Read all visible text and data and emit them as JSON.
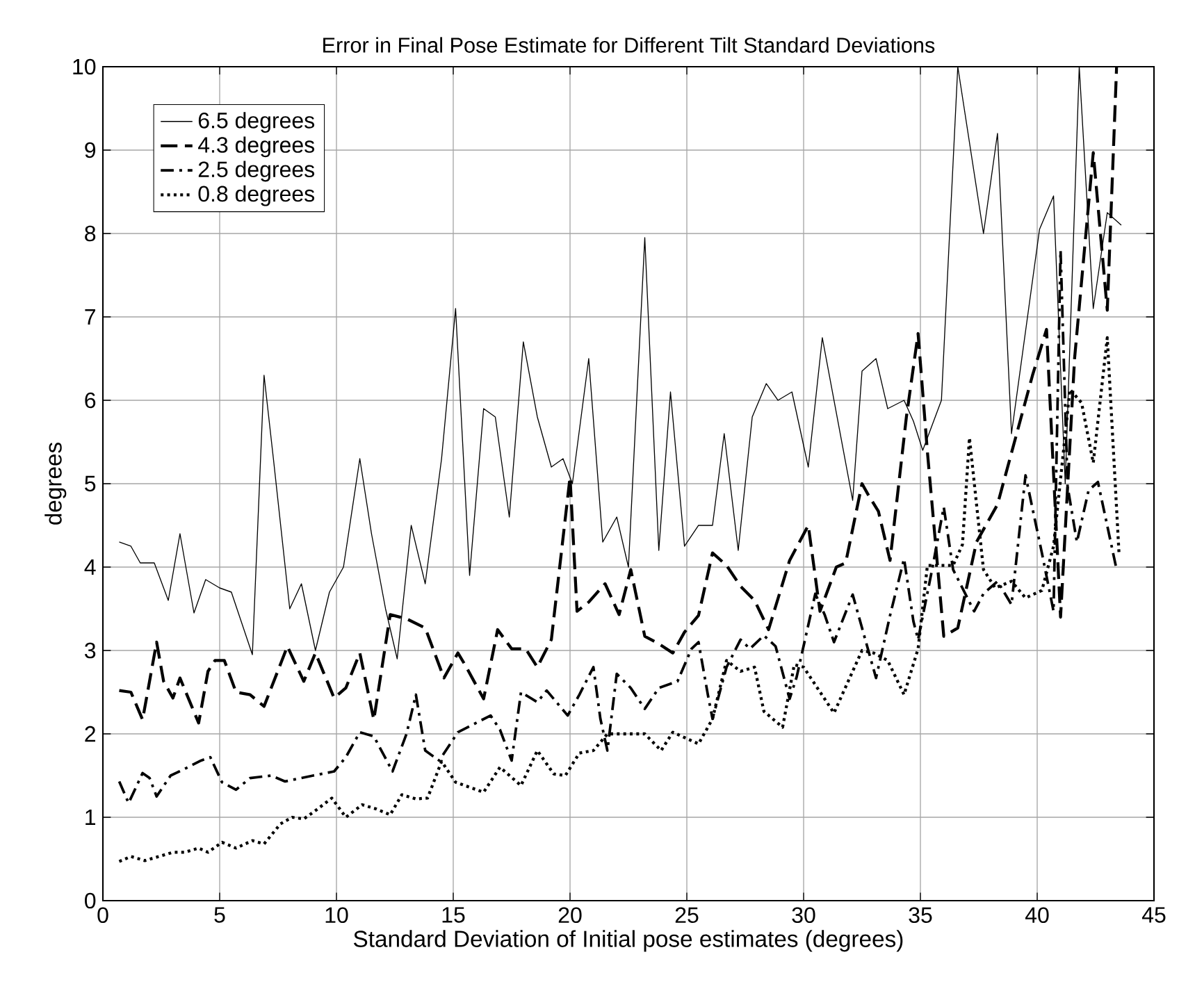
{
  "chart_data": {
    "type": "line",
    "title": "Error in Final Pose Estimate for Different Tilt Standard Deviations",
    "xlabel": "Standard Deviation of Initial pose estimates (degrees)",
    "ylabel": "degrees",
    "xlim": [
      0,
      45
    ],
    "ylim": [
      0,
      10
    ],
    "xticks": [
      0,
      5,
      10,
      15,
      20,
      25,
      30,
      35,
      40,
      45
    ],
    "yticks": [
      0,
      1,
      2,
      3,
      4,
      5,
      6,
      7,
      8,
      9,
      10
    ],
    "grid": true,
    "legend": "top left",
    "marker": "none",
    "series": [
      {
        "name": "6.5 degrees",
        "color": "#000000",
        "line_style": "solid",
        "x": [
          0.7,
          1.2,
          1.6,
          2.2,
          2.8,
          3.3,
          3.9,
          4.4,
          5.0,
          5.5,
          6.4,
          6.9,
          7.3,
          8.0,
          8.5,
          9.1,
          9.7,
          10.3,
          11.0,
          11.5,
          12.1,
          12.6,
          13.2,
          13.8,
          14.5,
          15.1,
          15.7,
          16.3,
          16.8,
          17.4,
          18.0,
          18.6,
          19.2,
          19.7,
          20.1,
          20.8,
          21.4,
          22.0,
          22.5,
          23.2,
          23.8,
          24.3,
          24.9,
          25.5,
          26.1,
          26.6,
          27.2,
          27.8,
          28.4,
          28.9,
          29.5,
          30.2,
          30.8,
          32.1,
          32.5,
          33.1,
          33.6,
          34.3,
          34.7,
          35.1,
          35.9,
          36.6,
          37.7,
          38.3,
          38.9,
          40.1,
          40.7,
          41.2,
          41.8,
          42.4,
          43.0,
          43.6
        ],
        "values": [
          4.3,
          4.25,
          4.05,
          4.05,
          3.6,
          4.4,
          3.45,
          3.85,
          3.75,
          3.7,
          2.95,
          6.3,
          5.3,
          3.5,
          3.8,
          3.0,
          3.7,
          4.0,
          5.3,
          4.4,
          3.5,
          2.9,
          4.5,
          3.8,
          5.3,
          7.1,
          3.9,
          5.9,
          5.8,
          4.6,
          6.7,
          5.8,
          5.2,
          5.3,
          5.0,
          6.5,
          4.3,
          4.6,
          4.0,
          7.95,
          4.2,
          6.1,
          4.25,
          4.5,
          4.5,
          5.6,
          4.2,
          5.8,
          6.2,
          6.0,
          6.1,
          5.2,
          6.75,
          4.8,
          6.35,
          6.5,
          5.9,
          6.0,
          5.75,
          5.4,
          6.0,
          10,
          8.0,
          9.2,
          5.6,
          8.05,
          8.45,
          5.0,
          10,
          7.1,
          8.25,
          8.1
        ]
      },
      {
        "name": "4.3 degrees",
        "color": "#000000",
        "line_style": "dashed",
        "x": [
          0.7,
          1.2,
          1.7,
          2.3,
          2.6,
          3.0,
          3.3,
          4.1,
          4.5,
          4.8,
          5.2,
          5.7,
          6.3,
          6.9,
          7.9,
          8.6,
          9.1,
          9.9,
          10.4,
          11.0,
          11.6,
          12.3,
          13.0,
          13.8,
          14.6,
          15.2,
          15.5,
          16.3,
          16.9,
          17.5,
          18.1,
          18.6,
          19.2,
          20.0,
          20.3,
          20.8,
          21.5,
          22.1,
          22.6,
          23.2,
          23.8,
          24.4,
          24.9,
          25.5,
          26.1,
          26.7,
          27.3,
          27.9,
          28.5,
          29.4,
          30.2,
          30.7,
          31.4,
          31.8,
          32.5,
          32.8,
          33.2,
          33.7,
          34.4,
          34.9,
          35.3,
          36.0,
          36.6,
          37.4,
          38.3,
          39.8,
          40.4,
          41.0,
          41.6,
          42.4,
          43.0,
          43.4
        ],
        "values": [
          2.52,
          2.5,
          2.17,
          3.1,
          2.63,
          2.43,
          2.67,
          2.13,
          2.75,
          2.88,
          2.88,
          2.5,
          2.47,
          2.33,
          3.05,
          2.63,
          2.97,
          2.43,
          2.55,
          2.97,
          2.17,
          3.43,
          3.38,
          3.27,
          2.67,
          2.97,
          2.83,
          2.42,
          3.25,
          3.02,
          3.02,
          2.8,
          3.13,
          5.08,
          3.47,
          3.58,
          3.8,
          3.43,
          3.97,
          3.17,
          3.08,
          2.97,
          3.22,
          3.42,
          4.17,
          4.02,
          3.77,
          3.6,
          3.25,
          4.08,
          4.5,
          3.47,
          4.0,
          4.05,
          5.0,
          4.85,
          4.67,
          4.08,
          5.8,
          6.8,
          5.38,
          3.17,
          3.27,
          4.3,
          4.75,
          6.3,
          6.85,
          3.4,
          6.5,
          8.97,
          7.08,
          10
        ]
      },
      {
        "name": "2.5 degrees",
        "color": "#000000",
        "line_style": "dashdot",
        "x": [
          0.7,
          1.1,
          1.7,
          2.0,
          2.3,
          2.9,
          3.5,
          4.2,
          4.6,
          5.1,
          5.7,
          6.3,
          7.2,
          7.8,
          9.0,
          9.9,
          10.4,
          11.0,
          11.6,
          12.4,
          13.0,
          13.4,
          13.8,
          14.4,
          15.2,
          16.6,
          17.0,
          17.5,
          17.9,
          18.6,
          19.0,
          19.9,
          20.4,
          21.0,
          21.3,
          21.6,
          22.0,
          22.6,
          23.2,
          23.8,
          24.6,
          25.2,
          25.5,
          25.9,
          26.1,
          26.7,
          27.3,
          27.7,
          28.3,
          28.8,
          29.4,
          29.7,
          30.5,
          30.9,
          31.3,
          32.1,
          33.1,
          33.7,
          34.3,
          34.7,
          34.9,
          35.5,
          36.0,
          36.4,
          37.3,
          37.7,
          38.3,
          38.9,
          39.5,
          40.2,
          40.7,
          41.0,
          41.3,
          41.7,
          42.2,
          42.6,
          43.4
        ],
        "values": [
          1.43,
          1.17,
          1.53,
          1.47,
          1.25,
          1.5,
          1.58,
          1.68,
          1.72,
          1.42,
          1.33,
          1.47,
          1.5,
          1.43,
          1.5,
          1.55,
          1.72,
          2.02,
          1.97,
          1.55,
          2.0,
          2.47,
          1.8,
          1.68,
          2.02,
          2.22,
          2.05,
          1.68,
          2.5,
          2.38,
          2.52,
          2.22,
          2.47,
          2.8,
          2.18,
          1.8,
          2.72,
          2.55,
          2.3,
          2.55,
          2.63,
          3.02,
          3.1,
          2.47,
          2.18,
          2.8,
          3.13,
          3.02,
          3.18,
          3.05,
          2.42,
          2.68,
          3.68,
          3.43,
          3.1,
          3.67,
          2.67,
          3.42,
          4.1,
          3.35,
          3.13,
          3.97,
          4.72,
          3.97,
          3.47,
          3.68,
          3.83,
          3.55,
          5.1,
          4.17,
          3.47,
          7.8,
          4.97,
          4.3,
          4.92,
          5.02,
          3.97
        ]
      },
      {
        "name": "0.8 degrees",
        "color": "#000000",
        "line_style": "dotted",
        "x": [
          0.7,
          1.2,
          1.8,
          2.4,
          3.0,
          3.5,
          4.1,
          4.5,
          5.1,
          5.7,
          6.4,
          6.9,
          7.6,
          8.1,
          8.6,
          9.2,
          9.8,
          10.4,
          11.1,
          11.7,
          12.3,
          12.8,
          13.4,
          13.9,
          14.5,
          15.1,
          16.3,
          17.0,
          17.9,
          18.6,
          19.3,
          19.8,
          20.4,
          21.0,
          21.6,
          22.4,
          23.2,
          23.9,
          24.4,
          25.5,
          26.1,
          26.7,
          27.3,
          27.9,
          28.3,
          29.1,
          29.6,
          30.0,
          31.3,
          32.5,
          33.0,
          33.6,
          34.3,
          34.9,
          35.3,
          36.4,
          36.8,
          37.1,
          37.7,
          38.2,
          38.9,
          39.5,
          40.2,
          40.7,
          41.4,
          41.9,
          42.4,
          43.0,
          43.5
        ],
        "values": [
          0.47,
          0.53,
          0.48,
          0.53,
          0.58,
          0.58,
          0.63,
          0.58,
          0.7,
          0.63,
          0.72,
          0.68,
          0.92,
          1.0,
          0.98,
          1.1,
          1.23,
          1.0,
          1.15,
          1.1,
          1.03,
          1.27,
          1.22,
          1.23,
          1.67,
          1.42,
          1.3,
          1.6,
          1.38,
          1.8,
          1.52,
          1.5,
          1.77,
          1.8,
          2.0,
          2.0,
          2.0,
          1.8,
          2.02,
          1.88,
          2.18,
          2.88,
          2.75,
          2.8,
          2.27,
          2.08,
          2.83,
          2.8,
          2.25,
          3.0,
          2.97,
          2.88,
          2.47,
          3.02,
          4.02,
          4.02,
          4.27,
          5.55,
          3.97,
          3.75,
          3.83,
          3.63,
          3.72,
          4.25,
          6.13,
          5.97,
          5.25,
          6.75,
          4.18
        ]
      }
    ]
  }
}
